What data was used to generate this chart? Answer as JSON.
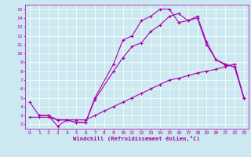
{
  "xlabel": "Windchill (Refroidissement éolien,°C)",
  "bg_color": "#cce8f0",
  "line_color": "#aa00aa",
  "xlim": [
    -0.5,
    23.5
  ],
  "ylim": [
    1.5,
    15.5
  ],
  "xticks": [
    0,
    1,
    2,
    3,
    4,
    5,
    6,
    7,
    8,
    9,
    10,
    11,
    12,
    13,
    14,
    15,
    16,
    17,
    18,
    19,
    20,
    21,
    22,
    23
  ],
  "yticks": [
    2,
    3,
    4,
    5,
    6,
    7,
    8,
    9,
    10,
    11,
    12,
    13,
    14,
    15
  ],
  "line1_x": [
    0,
    1,
    2,
    3,
    4,
    5,
    6,
    7,
    9,
    10,
    11,
    12,
    13,
    14,
    15,
    16,
    17,
    18,
    19,
    20,
    21,
    22,
    23
  ],
  "line1_y": [
    4.5,
    3.0,
    3.0,
    1.8,
    2.5,
    2.2,
    2.2,
    5.0,
    8.8,
    11.5,
    12.0,
    13.7,
    14.2,
    15.0,
    15.0,
    13.5,
    13.7,
    14.2,
    11.3,
    9.3,
    8.7,
    8.5,
    5.0
  ],
  "line2_x": [
    1,
    2,
    3,
    4,
    5,
    6,
    7,
    9,
    10,
    11,
    12,
    13,
    14,
    15,
    16,
    17,
    18,
    19,
    20,
    21,
    22,
    23
  ],
  "line2_y": [
    3.0,
    3.0,
    2.5,
    2.5,
    2.2,
    2.2,
    4.8,
    8.0,
    9.5,
    10.8,
    11.2,
    12.5,
    13.2,
    14.2,
    14.5,
    13.7,
    14.0,
    11.0,
    9.3,
    8.8,
    8.5,
    5.0
  ],
  "line3_x": [
    0,
    1,
    2,
    3,
    4,
    5,
    6,
    7,
    8,
    9,
    10,
    11,
    12,
    13,
    14,
    15,
    16,
    17,
    18,
    19,
    20,
    21,
    22,
    23
  ],
  "line3_y": [
    2.8,
    2.8,
    2.8,
    2.5,
    2.5,
    2.5,
    2.5,
    3.0,
    3.5,
    4.0,
    4.5,
    5.0,
    5.5,
    6.0,
    6.5,
    7.0,
    7.2,
    7.5,
    7.8,
    8.0,
    8.2,
    8.5,
    8.8,
    5.0
  ],
  "tick_fontsize": 4.5,
  "xlabel_fontsize": 5.2,
  "grid_color": "#ffffff",
  "grid_linewidth": 0.5
}
